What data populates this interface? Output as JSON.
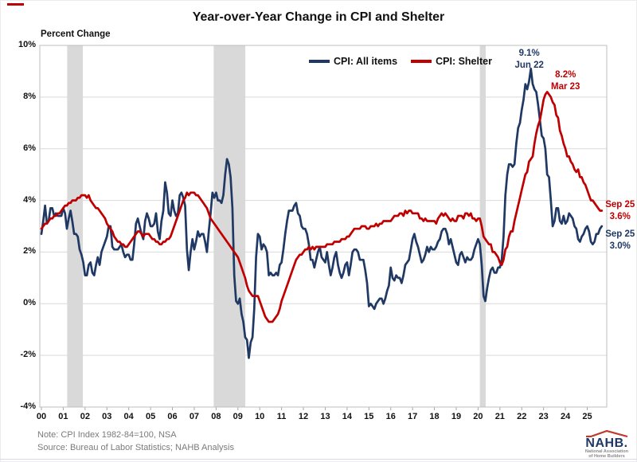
{
  "chart_data": {
    "type": "line",
    "title": "Year-over-Year Change in CPI and Shelter",
    "ylabel": "Percent Change",
    "ylim": [
      -4,
      10
    ],
    "grid": "horizontal",
    "legend_position": "top-center-inside",
    "x_start_year": 2000,
    "points_per_year": 12,
    "x_tick_labels": [
      "00",
      "01",
      "02",
      "03",
      "04",
      "05",
      "06",
      "07",
      "08",
      "09",
      "10",
      "11",
      "12",
      "13",
      "14",
      "15",
      "16",
      "17",
      "18",
      "19",
      "20",
      "21",
      "22",
      "23",
      "24",
      "25"
    ],
    "y_ticks": [
      {
        "label": "10%",
        "value": 10
      },
      {
        "label": "8%",
        "value": 8
      },
      {
        "label": "6%",
        "value": 6
      },
      {
        "label": "4%",
        "value": 4
      },
      {
        "label": "2%",
        "value": 2
      },
      {
        "label": "0%",
        "value": 0
      },
      {
        "label": "-2%",
        "value": -2
      },
      {
        "label": "-4%",
        "value": -4
      }
    ],
    "band_color": "#d9d9d9",
    "shaded_regions": [
      {
        "name": "recession-2001",
        "start_year": 2001.18,
        "end_year": 2001.9
      },
      {
        "name": "recession-2008-09",
        "start_year": 2007.89,
        "end_year": 2009.34
      },
      {
        "name": "recession-2020",
        "start_year": 2020.08,
        "end_year": 2020.35
      }
    ],
    "series": [
      {
        "name": "CPI: All items",
        "color": "#1f3864",
        "values": [
          2.7,
          3.2,
          3.8,
          3.1,
          3.2,
          3.7,
          3.7,
          3.4,
          3.5,
          3.4,
          3.4,
          3.4,
          3.7,
          3.5,
          2.9,
          3.3,
          3.6,
          3.2,
          2.7,
          2.7,
          2.6,
          2.1,
          1.9,
          1.6,
          1.1,
          1.1,
          1.5,
          1.6,
          1.2,
          1.1,
          1.5,
          1.8,
          1.5,
          2.0,
          2.2,
          2.4,
          2.6,
          3.0,
          3.0,
          2.2,
          2.1,
          2.1,
          2.1,
          2.2,
          2.3,
          2.0,
          1.8,
          1.9,
          1.9,
          1.7,
          1.7,
          2.3,
          3.1,
          3.3,
          3.0,
          2.7,
          2.5,
          3.2,
          3.5,
          3.3,
          3.0,
          3.0,
          3.1,
          3.5,
          2.8,
          2.5,
          3.2,
          3.6,
          4.7,
          4.3,
          3.5,
          3.4,
          4.0,
          3.6,
          3.4,
          3.5,
          4.2,
          4.3,
          4.1,
          3.8,
          2.1,
          1.3,
          2.0,
          2.5,
          2.1,
          2.4,
          2.8,
          2.6,
          2.7,
          2.7,
          2.4,
          2.0,
          2.8,
          3.5,
          4.3,
          4.1,
          4.3,
          4.0,
          4.0,
          3.9,
          4.2,
          5.0,
          5.6,
          5.4,
          4.9,
          3.7,
          1.1,
          0.1,
          0.0,
          0.2,
          -0.4,
          -0.7,
          -1.3,
          -1.4,
          -2.1,
          -1.5,
          -1.3,
          -0.2,
          1.8,
          2.7,
          2.6,
          2.1,
          2.3,
          2.2,
          2.0,
          1.1,
          1.2,
          1.1,
          1.1,
          1.2,
          1.1,
          1.5,
          1.6,
          2.1,
          2.7,
          3.2,
          3.6,
          3.6,
          3.6,
          3.8,
          3.9,
          3.5,
          3.4,
          3.0,
          2.9,
          2.9,
          2.7,
          2.3,
          1.7,
          1.7,
          1.4,
          1.7,
          2.0,
          2.2,
          1.8,
          1.7,
          1.6,
          2.0,
          1.5,
          1.1,
          1.4,
          1.8,
          2.0,
          1.5,
          1.2,
          1.0,
          1.2,
          1.5,
          1.6,
          1.1,
          1.5,
          2.0,
          2.1,
          2.1,
          2.0,
          1.7,
          1.7,
          1.7,
          1.3,
          0.8,
          -0.1,
          0.0,
          -0.1,
          -0.2,
          0.0,
          0.1,
          0.2,
          0.2,
          0.0,
          0.2,
          0.5,
          0.7,
          1.4,
          1.0,
          0.9,
          1.1,
          1.0,
          1.0,
          0.8,
          1.1,
          1.5,
          1.6,
          1.7,
          2.1,
          2.5,
          2.7,
          2.4,
          2.2,
          1.9,
          1.6,
          1.7,
          1.9,
          2.2,
          2.0,
          2.2,
          2.1,
          2.1,
          2.2,
          2.4,
          2.5,
          2.8,
          2.9,
          2.9,
          2.7,
          2.3,
          2.5,
          2.2,
          1.9,
          1.6,
          1.5,
          1.9,
          2.0,
          1.8,
          1.6,
          1.8,
          1.7,
          1.7,
          1.8,
          2.1,
          2.3,
          2.5,
          2.3,
          1.5,
          0.3,
          0.1,
          0.6,
          1.0,
          1.3,
          1.4,
          1.2,
          1.2,
          1.4,
          1.4,
          1.7,
          2.6,
          4.2,
          5.0,
          5.4,
          5.4,
          5.3,
          5.4,
          6.2,
          6.8,
          7.0,
          7.5,
          7.9,
          8.5,
          8.3,
          8.6,
          9.1,
          8.5,
          8.3,
          8.2,
          7.7,
          7.1,
          6.5,
          6.4,
          6.0,
          5.0,
          4.9,
          4.0,
          3.0,
          3.2,
          3.7,
          3.7,
          3.2,
          3.1,
          3.4,
          3.1,
          3.2,
          3.5,
          3.4,
          3.3,
          3.0,
          2.9,
          2.5,
          2.4,
          2.6,
          2.7,
          2.9,
          3.0,
          2.8,
          2.4,
          2.3,
          2.4,
          2.7,
          2.7,
          2.9,
          3.0
        ]
      },
      {
        "name": "CPI: Shelter",
        "color": "#c00000",
        "values": [
          2.9,
          3.0,
          3.1,
          3.1,
          3.2,
          3.3,
          3.3,
          3.4,
          3.4,
          3.5,
          3.5,
          3.6,
          3.7,
          3.8,
          3.8,
          3.9,
          3.9,
          4.0,
          4.0,
          4.0,
          4.1,
          4.1,
          4.2,
          4.2,
          4.2,
          4.1,
          4.2,
          4.0,
          3.9,
          3.8,
          3.7,
          3.7,
          3.6,
          3.5,
          3.4,
          3.3,
          3.1,
          3.0,
          2.9,
          2.8,
          2.6,
          2.5,
          2.4,
          2.4,
          2.3,
          2.3,
          2.2,
          2.2,
          2.3,
          2.4,
          2.5,
          2.6,
          2.7,
          2.8,
          2.8,
          2.7,
          2.6,
          2.7,
          2.7,
          2.7,
          2.6,
          2.5,
          2.5,
          2.4,
          2.4,
          2.3,
          2.3,
          2.4,
          2.4,
          2.5,
          2.5,
          2.6,
          2.8,
          3.0,
          3.2,
          3.4,
          3.6,
          3.8,
          4.0,
          4.1,
          4.3,
          4.2,
          4.3,
          4.3,
          4.3,
          4.2,
          4.2,
          4.1,
          4.0,
          3.9,
          3.8,
          3.7,
          3.5,
          3.3,
          3.2,
          3.1,
          3.0,
          2.9,
          2.8,
          2.7,
          2.6,
          2.5,
          2.4,
          2.3,
          2.2,
          2.1,
          2.0,
          1.9,
          1.8,
          1.6,
          1.4,
          1.2,
          1.0,
          0.7,
          0.5,
          0.4,
          0.3,
          0.3,
          0.3,
          0.3,
          0.1,
          -0.1,
          -0.3,
          -0.5,
          -0.6,
          -0.7,
          -0.7,
          -0.7,
          -0.6,
          -0.5,
          -0.4,
          -0.2,
          0.1,
          0.3,
          0.5,
          0.7,
          0.9,
          1.1,
          1.3,
          1.5,
          1.7,
          1.8,
          1.9,
          1.9,
          2.0,
          2.1,
          2.1,
          2.2,
          2.1,
          2.2,
          2.1,
          2.2,
          2.2,
          2.2,
          2.2,
          2.2,
          2.2,
          2.3,
          2.3,
          2.3,
          2.3,
          2.4,
          2.4,
          2.4,
          2.4,
          2.5,
          2.5,
          2.5,
          2.6,
          2.6,
          2.7,
          2.8,
          2.9,
          2.9,
          2.9,
          2.9,
          3.0,
          3.0,
          3.0,
          2.9,
          2.9,
          3.0,
          3.0,
          3.0,
          3.1,
          3.0,
          3.1,
          3.1,
          3.2,
          3.2,
          3.2,
          3.2,
          3.2,
          3.3,
          3.4,
          3.4,
          3.4,
          3.5,
          3.5,
          3.4,
          3.6,
          3.5,
          3.6,
          3.6,
          3.5,
          3.5,
          3.5,
          3.5,
          3.3,
          3.3,
          3.2,
          3.3,
          3.2,
          3.2,
          3.2,
          3.2,
          3.2,
          3.1,
          3.3,
          3.4,
          3.5,
          3.4,
          3.5,
          3.4,
          3.3,
          3.2,
          3.3,
          3.2,
          3.2,
          3.4,
          3.4,
          3.4,
          3.3,
          3.5,
          3.5,
          3.4,
          3.5,
          3.3,
          3.3,
          3.2,
          3.3,
          3.3,
          3.0,
          2.6,
          2.5,
          2.4,
          2.3,
          2.3,
          2.0,
          2.0,
          1.9,
          1.8,
          1.6,
          1.5,
          1.7,
          2.1,
          2.2,
          2.6,
          2.8,
          2.8,
          3.2,
          3.5,
          3.8,
          4.1,
          4.4,
          4.7,
          5.0,
          5.1,
          5.5,
          5.6,
          5.7,
          6.2,
          6.6,
          6.9,
          7.1,
          7.5,
          7.9,
          8.1,
          8.2,
          8.1,
          8.0,
          7.8,
          7.7,
          7.3,
          7.2,
          6.7,
          6.5,
          6.2,
          6.0,
          5.7,
          5.7,
          5.5,
          5.4,
          5.2,
          5.1,
          5.2,
          4.9,
          4.9,
          4.7,
          4.6,
          4.4,
          4.2,
          4.0,
          4.0,
          3.9,
          3.8,
          3.7,
          3.6,
          3.6
        ]
      }
    ],
    "annotations": [
      {
        "lines": [
          "9.1%",
          "Jun 22"
        ],
        "color": "#1f3864",
        "anchor_year": 2022.417,
        "anchor_value": 9.1
      },
      {
        "lines": [
          "8.2%",
          "Mar 23"
        ],
        "color": "#c00000",
        "anchor_year": 2023.167,
        "anchor_value": 8.2
      },
      {
        "lines": [
          "Sep 25",
          "3.6%"
        ],
        "color": "#c00000",
        "anchor_year": 2025.667,
        "anchor_value": 3.6
      },
      {
        "lines": [
          "Sep 25",
          "3.0%"
        ],
        "color": "#1f3864",
        "anchor_year": 2025.667,
        "anchor_value": 3.0
      }
    ]
  },
  "legend": {
    "items": [
      {
        "label": "CPI: All items",
        "color": "#1f3864"
      },
      {
        "label": "CPI: Shelter",
        "color": "#c00000"
      }
    ]
  },
  "footer": {
    "note": "Note: CPI Index 1982-84=100, NSA",
    "source": "Source: Bureau of Labor Statistics; NAHB Analysis"
  },
  "logo": {
    "name": "NAHB.",
    "tagline_line1": "National Association",
    "tagline_line2": "of Home Builders",
    "text_color": "#1f3864",
    "roof_color": "#c0392b"
  }
}
